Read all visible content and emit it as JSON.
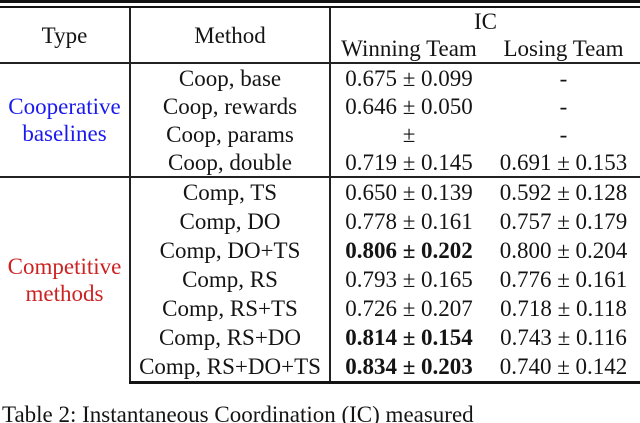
{
  "figure": {
    "kind": "paper-table",
    "colors": {
      "cooperative_label": "#1a1aee",
      "competitive_label": "#cc2222",
      "text": "#141414",
      "background": "#ffffff"
    }
  },
  "table": {
    "headers": {
      "type": "Type",
      "method": "Method",
      "ic": "IC",
      "winning": "Winning Team",
      "losing": "Losing Team"
    },
    "sections": [
      {
        "name": "cooperative",
        "label_line1": "Cooperative",
        "label_line2": "baselines"
      },
      {
        "name": "competitive",
        "label_line1": "Competitive",
        "label_line2": "methods"
      }
    ],
    "rows": [
      {
        "section": "cooperative",
        "method": "Coop, base",
        "winning": "0.675 ± 0.099",
        "losing": "-",
        "winning_bold": false
      },
      {
        "section": "cooperative",
        "method": "Coop, rewards",
        "winning": "0.646 ± 0.050",
        "losing": "-",
        "winning_bold": false
      },
      {
        "section": "cooperative",
        "method": "Coop, params",
        "winning": "±",
        "losing": "-",
        "winning_bold": false
      },
      {
        "section": "cooperative",
        "method": "Coop, double",
        "winning": "0.719 ± 0.145",
        "losing": "0.691 ± 0.153",
        "winning_bold": false
      },
      {
        "section": "competitive",
        "method": "Comp, TS",
        "winning": "0.650 ± 0.139",
        "losing": "0.592 ± 0.128",
        "winning_bold": false
      },
      {
        "section": "competitive",
        "method": "Comp, DO",
        "winning": "0.778 ± 0.161",
        "losing": "0.757 ± 0.179",
        "winning_bold": false
      },
      {
        "section": "competitive",
        "method": "Comp, DO+TS",
        "winning": "0.806 ± 0.202",
        "losing": "0.800 ± 0.204",
        "winning_bold": true
      },
      {
        "section": "competitive",
        "method": "Comp, RS",
        "winning": "0.793 ± 0.165",
        "losing": "0.776 ± 0.161",
        "winning_bold": false
      },
      {
        "section": "competitive",
        "method": "Comp, RS+TS",
        "winning": "0.726 ± 0.207",
        "losing": "0.718 ± 0.118",
        "winning_bold": false
      },
      {
        "section": "competitive",
        "method": "Comp, RS+DO",
        "winning": "0.814 ± 0.154",
        "losing": "0.743 ± 0.116",
        "winning_bold": true
      },
      {
        "section": "competitive",
        "method": "Comp, RS+DO+TS",
        "winning": "0.834 ± 0.203",
        "losing": "0.740 ± 0.142",
        "winning_bold": true
      }
    ]
  },
  "caption": "Table 2: Instantaneous Coordination (IC) measured"
}
